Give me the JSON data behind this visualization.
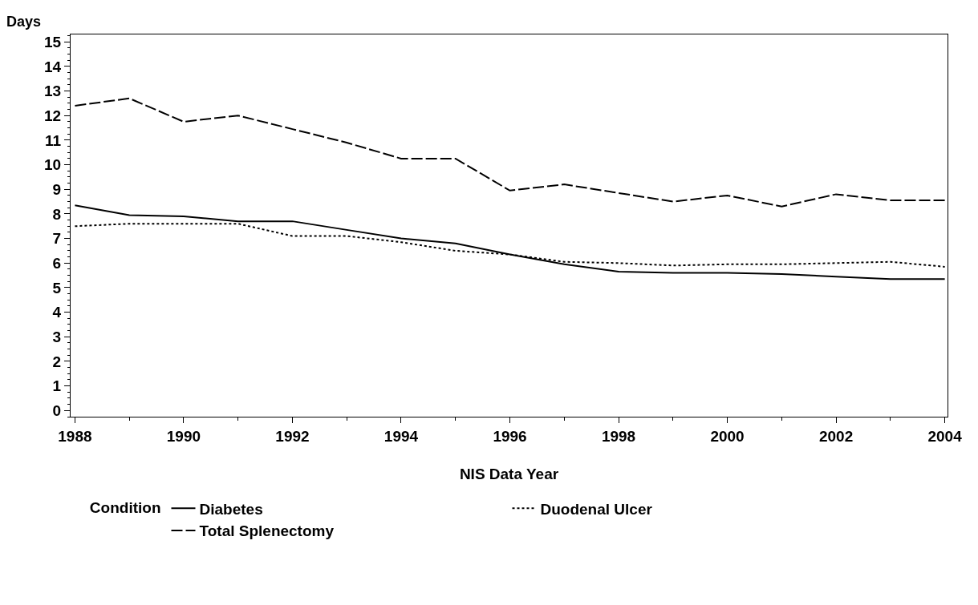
{
  "chart_data": {
    "type": "line",
    "xlabel": "NIS Data Year",
    "ylabel": "Days",
    "legend_title": "Condition",
    "legend": "bottom",
    "grid": false,
    "marker": "none",
    "x": [
      1988,
      1989,
      1990,
      1991,
      1992,
      1993,
      1994,
      1995,
      1996,
      1997,
      1998,
      1999,
      2000,
      2001,
      2002,
      2003,
      2004
    ],
    "xlim": [
      1987.92,
      2004.05
    ],
    "xticks": [
      1988,
      1990,
      1992,
      1994,
      1996,
      1998,
      2000,
      2002,
      2004
    ],
    "ylim": [
      -0.25,
      15.3
    ],
    "yticks": [
      0,
      1,
      2,
      3,
      4,
      5,
      6,
      7,
      8,
      9,
      10,
      11,
      12,
      13,
      14,
      15
    ],
    "series": [
      {
        "name": "Diabetes",
        "color": "#000000",
        "line_style": "solid",
        "values": [
          8.35,
          7.95,
          7.9,
          7.7,
          7.7,
          7.35,
          7.0,
          6.8,
          6.35,
          5.95,
          5.65,
          5.6,
          5.6,
          5.55,
          5.45,
          5.35,
          5.35
        ]
      },
      {
        "name": "Duodenal Ulcer",
        "color": "#000000",
        "line_style": "dotted",
        "values": [
          7.5,
          7.6,
          7.6,
          7.6,
          7.1,
          7.1,
          6.85,
          6.5,
          6.35,
          6.05,
          6.0,
          5.9,
          5.95,
          5.95,
          6.0,
          6.05,
          5.85
        ]
      },
      {
        "name": "Total Splenectomy",
        "color": "#000000",
        "line_style": "dashed",
        "values": [
          12.4,
          12.7,
          11.75,
          12.0,
          11.45,
          10.9,
          10.25,
          10.25,
          8.95,
          9.2,
          8.85,
          8.5,
          8.75,
          8.3,
          8.8,
          8.55,
          8.55
        ]
      }
    ]
  }
}
